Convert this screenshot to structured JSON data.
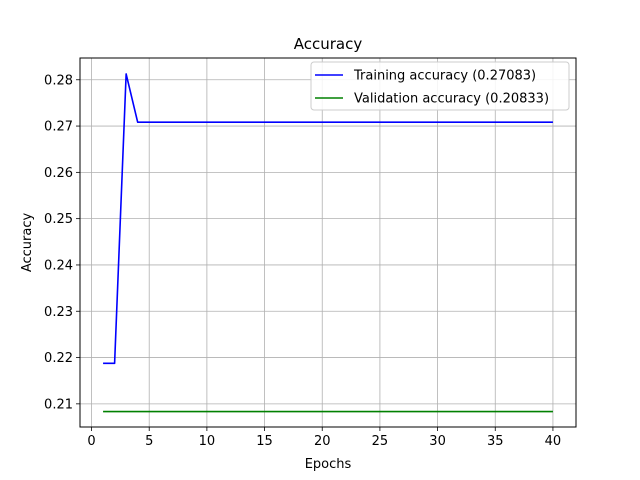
{
  "chart_data": {
    "type": "line",
    "title": "Accuracy",
    "xlabel": "Epochs",
    "ylabel": "Accuracy",
    "xlim": [
      -1,
      42
    ],
    "ylim": [
      0.205,
      0.2847
    ],
    "xticks": [
      0,
      5,
      10,
      15,
      20,
      25,
      30,
      35,
      40
    ],
    "yticks": [
      0.21,
      0.22,
      0.23,
      0.24,
      0.25,
      0.26,
      0.27,
      0.28
    ],
    "ytick_labels": [
      "0.21",
      "0.22",
      "0.23",
      "0.24",
      "0.25",
      "0.26",
      "0.27",
      "0.28"
    ],
    "grid": true,
    "legend": "top-right",
    "series": [
      {
        "name": "Training accuracy (0.27083)",
        "color": "#0000ff",
        "x": [
          1,
          2,
          3,
          4,
          5,
          6,
          7,
          8,
          9,
          10,
          11,
          12,
          13,
          14,
          15,
          16,
          17,
          18,
          19,
          20,
          21,
          22,
          23,
          24,
          25,
          26,
          27,
          28,
          29,
          30,
          31,
          32,
          33,
          34,
          35,
          36,
          37,
          38,
          39,
          40
        ],
        "y": [
          0.21875,
          0.21875,
          0.28125,
          0.27083,
          0.27083,
          0.27083,
          0.27083,
          0.27083,
          0.27083,
          0.27083,
          0.27083,
          0.27083,
          0.27083,
          0.27083,
          0.27083,
          0.27083,
          0.27083,
          0.27083,
          0.27083,
          0.27083,
          0.27083,
          0.27083,
          0.27083,
          0.27083,
          0.27083,
          0.27083,
          0.27083,
          0.27083,
          0.27083,
          0.27083,
          0.27083,
          0.27083,
          0.27083,
          0.27083,
          0.27083,
          0.27083,
          0.27083,
          0.27083,
          0.27083,
          0.27083
        ]
      },
      {
        "name": "Validation accuracy (0.20833)",
        "color": "#008000",
        "x": [
          1,
          2,
          3,
          4,
          5,
          6,
          7,
          8,
          9,
          10,
          11,
          12,
          13,
          14,
          15,
          16,
          17,
          18,
          19,
          20,
          21,
          22,
          23,
          24,
          25,
          26,
          27,
          28,
          29,
          30,
          31,
          32,
          33,
          34,
          35,
          36,
          37,
          38,
          39,
          40
        ],
        "y": [
          0.20833,
          0.20833,
          0.20833,
          0.20833,
          0.20833,
          0.20833,
          0.20833,
          0.20833,
          0.20833,
          0.20833,
          0.20833,
          0.20833,
          0.20833,
          0.20833,
          0.20833,
          0.20833,
          0.20833,
          0.20833,
          0.20833,
          0.20833,
          0.20833,
          0.20833,
          0.20833,
          0.20833,
          0.20833,
          0.20833,
          0.20833,
          0.20833,
          0.20833,
          0.20833,
          0.20833,
          0.20833,
          0.20833,
          0.20833,
          0.20833,
          0.20833,
          0.20833,
          0.20833,
          0.20833,
          0.20833
        ]
      }
    ]
  }
}
